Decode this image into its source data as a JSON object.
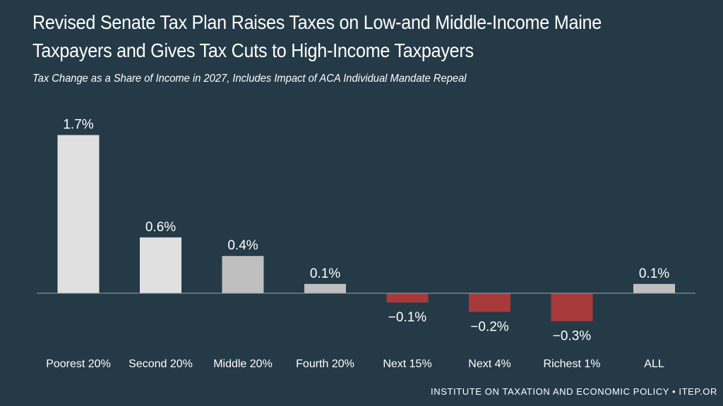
{
  "colors": {
    "background": "#243a47",
    "bar_positive_light": "#e0e0e0",
    "bar_positive_mid": "#bfbfbf",
    "bar_negative": "#a83a3b",
    "axis": "#9aa6ad",
    "text": "#ffffff"
  },
  "header": {
    "title_line1": "Revised Senate Tax Plan Raises Taxes on Low-and Middle-Income Maine",
    "title_line2": "Taxpayers and Gives Tax Cuts to High-Income Taxpayers",
    "subtitle": "Tax Change as a Share of Income in 2027, Includes Impact of ACA Individual Mandate Repeal"
  },
  "footer": {
    "source": "INSTITUTE ON TAXATION AND ECONOMIC POLICY • ITEP.OR"
  },
  "chart_data": {
    "type": "bar",
    "title": "Revised Senate Tax Plan Raises Taxes on Low-and Middle-Income Maine Taxpayers and Gives Tax Cuts to High-Income Taxpayers",
    "subtitle": "Tax Change as a Share of Income in 2027, Includes Impact of ACA Individual Mandate Repeal",
    "xlabel": "",
    "ylabel": "",
    "ylim": [
      -0.4,
      1.8
    ],
    "grid": false,
    "categories": [
      "Poorest 20%",
      "Second 20%",
      "Middle 20%",
      "Fourth 20%",
      "Next 15%",
      "Next 4%",
      "Richest 1%",
      "ALL"
    ],
    "values": [
      1.7,
      0.6,
      0.4,
      0.1,
      -0.1,
      -0.2,
      -0.3,
      0.1
    ],
    "value_labels": [
      "1.7%",
      "0.6%",
      "0.4%",
      "0.1%",
      "−0.1%",
      "−0.2%",
      "−0.3%",
      "0.1%"
    ],
    "bar_colors": [
      "#e0e0e0",
      "#e0e0e0",
      "#bfbfbf",
      "#bfbfbf",
      "#a83a3b",
      "#a83a3b",
      "#a83a3b",
      "#bfbfbf"
    ]
  }
}
